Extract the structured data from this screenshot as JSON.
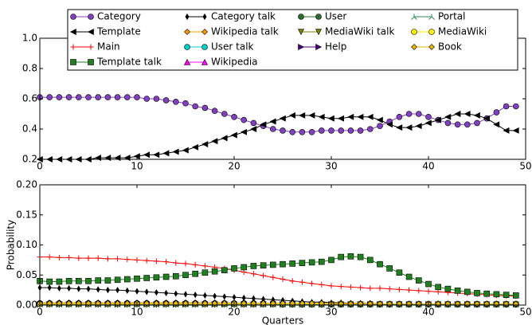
{
  "chart_data": [
    {
      "type": "line",
      "x": [
        0,
        1,
        2,
        3,
        4,
        5,
        6,
        7,
        8,
        9,
        10,
        11,
        12,
        13,
        14,
        15,
        16,
        17,
        18,
        19,
        20,
        21,
        22,
        23,
        24,
        25,
        26,
        27,
        28,
        29,
        30,
        31,
        32,
        33,
        34,
        35,
        36,
        37,
        38,
        39,
        40,
        41,
        42,
        43,
        44,
        45,
        46,
        47,
        48,
        49
      ],
      "xlim": [
        0,
        50
      ],
      "xticks": [
        0,
        10,
        20,
        30,
        40,
        50
      ],
      "ylim": [
        0.2,
        1.0
      ],
      "yticks": [
        0.2,
        0.4,
        0.6,
        0.8,
        {
          "value": 1.0,
          "label": "1.0"
        }
      ],
      "series": [
        {
          "name": "Category",
          "color": "#8040c0",
          "marker": "circle",
          "values": [
            0.61,
            0.61,
            0.61,
            0.61,
            0.61,
            0.61,
            0.61,
            0.61,
            0.61,
            0.61,
            0.61,
            0.6,
            0.6,
            0.59,
            0.58,
            0.57,
            0.55,
            0.54,
            0.52,
            0.5,
            0.48,
            0.46,
            0.44,
            0.42,
            0.4,
            0.39,
            0.38,
            0.38,
            0.38,
            0.39,
            0.39,
            0.39,
            0.39,
            0.39,
            0.4,
            0.42,
            0.45,
            0.48,
            0.5,
            0.5,
            0.48,
            0.46,
            0.44,
            0.43,
            0.43,
            0.44,
            0.47,
            0.51,
            0.55,
            0.55
          ]
        },
        {
          "name": "Template",
          "color": "#000000",
          "marker": "tri-left",
          "values": [
            0.2,
            0.2,
            0.2,
            0.2,
            0.2,
            0.2,
            0.21,
            0.21,
            0.21,
            0.21,
            0.22,
            0.23,
            0.23,
            0.24,
            0.25,
            0.26,
            0.28,
            0.3,
            0.32,
            0.34,
            0.36,
            0.38,
            0.4,
            0.43,
            0.45,
            0.47,
            0.49,
            0.49,
            0.49,
            0.48,
            0.47,
            0.47,
            0.48,
            0.48,
            0.48,
            0.46,
            0.43,
            0.41,
            0.41,
            0.42,
            0.44,
            0.46,
            0.48,
            0.5,
            0.5,
            0.49,
            0.47,
            0.43,
            0.39,
            0.39
          ]
        }
      ]
    },
    {
      "type": "line",
      "x": [
        0,
        1,
        2,
        3,
        4,
        5,
        6,
        7,
        8,
        9,
        10,
        11,
        12,
        13,
        14,
        15,
        16,
        17,
        18,
        19,
        20,
        21,
        22,
        23,
        24,
        25,
        26,
        27,
        28,
        29,
        30,
        31,
        32,
        33,
        34,
        35,
        36,
        37,
        38,
        39,
        40,
        41,
        42,
        43,
        44,
        45,
        46,
        47,
        48,
        49
      ],
      "xlim": [
        0,
        50
      ],
      "xticks": [
        0,
        10,
        20,
        30,
        40,
        50
      ],
      "ylim": [
        0,
        0.2
      ],
      "yticks": [
        {
          "value": 0,
          "label": "0.00"
        },
        {
          "value": 0.05,
          "label": "0.05"
        },
        {
          "value": 0.1,
          "label": "0.10"
        },
        {
          "value": 0.15,
          "label": "0.15"
        },
        {
          "value": 0.2,
          "label": "0.20"
        }
      ],
      "xlabel": "Quarters",
      "ylabel": "Probability",
      "series": [
        {
          "name": "Main",
          "color": "#ff0000",
          "marker": "plus",
          "values": [
            0.08,
            0.08,
            0.079,
            0.079,
            0.078,
            0.078,
            0.078,
            0.077,
            0.077,
            0.076,
            0.075,
            0.074,
            0.073,
            0.072,
            0.07,
            0.069,
            0.067,
            0.065,
            0.063,
            0.061,
            0.058,
            0.055,
            0.052,
            0.049,
            0.046,
            0.043,
            0.04,
            0.038,
            0.036,
            0.034,
            0.032,
            0.031,
            0.03,
            0.029,
            0.028,
            0.028,
            0.027,
            0.026,
            0.025,
            0.024,
            0.023,
            0.022,
            0.021,
            0.02,
            0.019,
            0.018,
            0.017,
            0.016,
            0.015,
            0.015
          ]
        },
        {
          "name": "Template talk",
          "color": "#208020",
          "marker": "square",
          "values": [
            0.04,
            0.039,
            0.039,
            0.04,
            0.04,
            0.04,
            0.041,
            0.041,
            0.042,
            0.043,
            0.044,
            0.045,
            0.046,
            0.047,
            0.048,
            0.05,
            0.052,
            0.054,
            0.056,
            0.058,
            0.061,
            0.063,
            0.065,
            0.066,
            0.067,
            0.068,
            0.069,
            0.07,
            0.071,
            0.072,
            0.075,
            0.08,
            0.081,
            0.08,
            0.075,
            0.068,
            0.061,
            0.054,
            0.047,
            0.041,
            0.035,
            0.03,
            0.027,
            0.024,
            0.022,
            0.02,
            0.019,
            0.018,
            0.017,
            0.016
          ]
        },
        {
          "name": "Category talk",
          "color": "#000000",
          "marker": "thin-diamond",
          "values": [
            0.029,
            0.029,
            0.028,
            0.028,
            0.027,
            0.027,
            0.026,
            0.025,
            0.025,
            0.024,
            0.023,
            0.022,
            0.021,
            0.02,
            0.019,
            0.018,
            0.017,
            0.016,
            0.015,
            0.014,
            0.013,
            0.012,
            0.011,
            0.01,
            0.009,
            0.008,
            0.007,
            0.006,
            0.005,
            0.005,
            0.004,
            0.004,
            0.003,
            0.003,
            0.003,
            0.002,
            0.002,
            0.002,
            0.002,
            0.001,
            0.001,
            0.001,
            0.001,
            0.001,
            0.001,
            0.001,
            0.001,
            0.001,
            0.001,
            0.001
          ]
        },
        {
          "name": "Wikipedia talk",
          "color": "#ff9900",
          "marker": "diamond",
          "values": [
            0.004,
            0.004,
            0.004,
            0.004,
            0.004,
            0.004,
            0.004,
            0.004,
            0.004,
            0.004,
            0.004,
            0.004,
            0.004,
            0.004,
            0.004,
            0.004,
            0.004,
            0.004,
            0.004,
            0.004,
            0.003,
            0.003,
            0.003,
            0.003,
            0.003,
            0.003,
            0.003,
            0.003,
            0.003,
            0.003,
            0.003,
            0.003,
            0.003,
            0.003,
            0.003,
            0.002,
            0.002,
            0.002,
            0.002,
            0.002,
            0.002,
            0.002,
            0.002,
            0.002,
            0.002,
            0.002,
            0.002,
            0.002,
            0.002,
            0.002
          ]
        },
        {
          "name": "User talk",
          "color": "#00cccc",
          "marker": "circle",
          "values": [
            0.002,
            0.002,
            0.002,
            0.002,
            0.002,
            0.002,
            0.002,
            0.002,
            0.002,
            0.002,
            0.002,
            0.002,
            0.002,
            0.002,
            0.002,
            0.002,
            0.002,
            0.002,
            0.002,
            0.002,
            0.002,
            0.002,
            0.002,
            0.002,
            0.002,
            0.001,
            0.001,
            0.001,
            0.001,
            0.001,
            0.001,
            0.001,
            0.001,
            0.001,
            0.001,
            0.001,
            0.001,
            0.001,
            0.001,
            0.001,
            0.001,
            0.001,
            0.001,
            0.001,
            0.001,
            0.001,
            0.001,
            0.001,
            0.001,
            0.001
          ]
        },
        {
          "name": "Wikipedia",
          "color": "#ff00ff",
          "marker": "tri-up",
          "values": [
            0.003,
            0.003,
            0.003,
            0.003,
            0.003,
            0.003,
            0.003,
            0.003,
            0.003,
            0.003,
            0.003,
            0.003,
            0.003,
            0.003,
            0.003,
            0.003,
            0.003,
            0.003,
            0.003,
            0.003,
            0.002,
            0.002,
            0.002,
            0.002,
            0.002,
            0.002,
            0.002,
            0.002,
            0.002,
            0.002,
            0.002,
            0.002,
            0.002,
            0.002,
            0.002,
            0.002,
            0.002,
            0.002,
            0.002,
            0.002,
            0.002,
            0.002,
            0.002,
            0.002,
            0.002,
            0.002,
            0.002,
            0.002,
            0.002,
            0.002
          ]
        },
        {
          "name": "User",
          "color": "#2e6b2e",
          "marker": "circle",
          "values": [
            0.003,
            0.003,
            0.003,
            0.003,
            0.003,
            0.003,
            0.003,
            0.003,
            0.003,
            0.003,
            0.003,
            0.003,
            0.003,
            0.003,
            0.003,
            0.003,
            0.003,
            0.003,
            0.003,
            0.003,
            0.003,
            0.003,
            0.003,
            0.003,
            0.003,
            0.002,
            0.002,
            0.002,
            0.002,
            0.002,
            0.002,
            0.002,
            0.002,
            0.002,
            0.002,
            0.002,
            0.002,
            0.002,
            0.002,
            0.002,
            0.002,
            0.002,
            0.002,
            0.002,
            0.002,
            0.002,
            0.002,
            0.002,
            0.002,
            0.002
          ]
        },
        {
          "name": "MediaWiki talk",
          "color": "#808000",
          "marker": "tri-down",
          "values": [
            0.001,
            0.001,
            0.001,
            0.001,
            0.001,
            0.001,
            0.001,
            0.001,
            0.001,
            0.001,
            0.001,
            0.001,
            0.001,
            0.001,
            0.001,
            0.001,
            0.001,
            0.001,
            0.001,
            0.001,
            0.001,
            0.001,
            0.001,
            0.001,
            0.001,
            0.001,
            0.001,
            0.001,
            0.001,
            0.001,
            0.001,
            0.001,
            0.001,
            0.001,
            0.001,
            0.001,
            0.001,
            0.001,
            0.001,
            0.001,
            0.001,
            0.001,
            0.001,
            0.001,
            0.001,
            0.001,
            0.001,
            0.001,
            0.001,
            0.001
          ]
        },
        {
          "name": "Help",
          "color": "#4b0082",
          "marker": "tri-right",
          "values": [
            0.001,
            0.001,
            0.001,
            0.001,
            0.001,
            0.001,
            0.001,
            0.001,
            0.001,
            0.001,
            0.001,
            0.001,
            0.001,
            0.001,
            0.001,
            0.001,
            0.001,
            0.001,
            0.001,
            0.001,
            0.001,
            0.001,
            0.001,
            0.001,
            0.001,
            0.001,
            0.001,
            0.001,
            0.001,
            0.001,
            0.001,
            0.001,
            0.001,
            0.001,
            0.001,
            0.001,
            0.001,
            0.001,
            0.001,
            0.001,
            0.001,
            0.001,
            0.001,
            0.001,
            0.001,
            0.001,
            0.001,
            0.001,
            0.001,
            0.001
          ]
        },
        {
          "name": "Portal",
          "color": "#2e8b57",
          "marker": "tri-line",
          "values": [
            0.001,
            0.001,
            0.001,
            0.001,
            0.001,
            0.001,
            0.001,
            0.001,
            0.001,
            0.001,
            0.001,
            0.001,
            0.001,
            0.001,
            0.001,
            0.001,
            0.001,
            0.001,
            0.001,
            0.001,
            0.001,
            0.001,
            0.001,
            0.001,
            0.001,
            0.001,
            0.001,
            0.001,
            0.001,
            0.001,
            0.001,
            0.001,
            0.001,
            0.001,
            0.001,
            0.001,
            0.001,
            0.001,
            0.001,
            0.001,
            0.001,
            0.001,
            0.001,
            0.001,
            0.001,
            0.001,
            0.001,
            0.001,
            0.001,
            0.001
          ]
        },
        {
          "name": "MediaWiki",
          "color": "#ffee00",
          "marker": "circle",
          "values": [
            0.002,
            0.002,
            0.002,
            0.002,
            0.002,
            0.002,
            0.002,
            0.002,
            0.002,
            0.002,
            0.002,
            0.002,
            0.002,
            0.002,
            0.002,
            0.002,
            0.002,
            0.002,
            0.002,
            0.002,
            0.002,
            0.002,
            0.002,
            0.002,
            0.002,
            0.002,
            0.002,
            0.002,
            0.002,
            0.002,
            0.002,
            0.002,
            0.002,
            0.002,
            0.002,
            0.002,
            0.002,
            0.002,
            0.002,
            0.002,
            0.002,
            0.002,
            0.002,
            0.002,
            0.002,
            0.002,
            0.002,
            0.002,
            0.002,
            0.002
          ]
        },
        {
          "name": "Book",
          "color": "#e6b800",
          "marker": "diamond",
          "values": [
            0.003,
            0.003,
            0.003,
            0.003,
            0.003,
            0.003,
            0.003,
            0.003,
            0.003,
            0.003,
            0.003,
            0.003,
            0.003,
            0.003,
            0.003,
            0.003,
            0.003,
            0.003,
            0.003,
            0.003,
            0.003,
            0.003,
            0.003,
            0.003,
            0.003,
            0.003,
            0.003,
            0.003,
            0.003,
            0.003,
            0.002,
            0.002,
            0.002,
            0.002,
            0.002,
            0.002,
            0.002,
            0.002,
            0.002,
            0.002,
            0.002,
            0.002,
            0.002,
            0.002,
            0.002,
            0.002,
            0.002,
            0.002,
            0.002,
            0.002
          ]
        }
      ]
    }
  ]
}
